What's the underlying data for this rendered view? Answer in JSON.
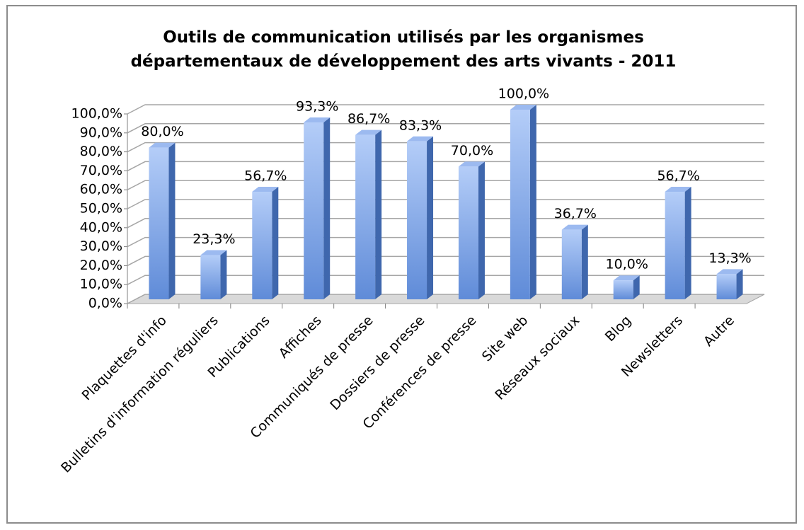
{
  "chart_data": {
    "type": "bar3d",
    "title": "Outils de communication utilisés par les organismes départementaux de développement des arts vivants - 2011",
    "categories": [
      "Plaquettes d'info",
      "Bulletins d'information réguliers",
      "Publications",
      "Affiches",
      "Communiqués de presse",
      "Dossiers de presse",
      "Conférences de presse",
      "Site web",
      "Réseaux sociaux",
      "Blog",
      "Newsletters",
      "Autre"
    ],
    "values": [
      80.0,
      23.3,
      56.7,
      93.3,
      86.7,
      83.3,
      70.0,
      100.0,
      36.7,
      10.0,
      56.7,
      13.3
    ],
    "value_labels": [
      "80,0%",
      "23,3%",
      "56,7%",
      "93,3%",
      "86,7%",
      "83,3%",
      "70,0%",
      "100,0%",
      "36,7%",
      "10,0%",
      "56,7%",
      "13,3%"
    ],
    "color": "#6f98e0",
    "ylim": [
      0,
      100
    ],
    "yticks": [
      {
        "value": 0,
        "label": "0,0%"
      },
      {
        "value": 10,
        "label": "10,0%"
      },
      {
        "value": 20,
        "label": "20,0%"
      },
      {
        "value": 30,
        "label": "30,0%"
      },
      {
        "value": 40,
        "label": "40,0%"
      },
      {
        "value": 50,
        "label": "50,0%"
      },
      {
        "value": 60,
        "label": "60,0%"
      },
      {
        "value": 70,
        "label": "70,0%"
      },
      {
        "value": 80,
        "label": "80,0%"
      },
      {
        "value": 90,
        "label": "90,0%"
      },
      {
        "value": 100,
        "label": "100,0%"
      }
    ],
    "grid": true
  }
}
